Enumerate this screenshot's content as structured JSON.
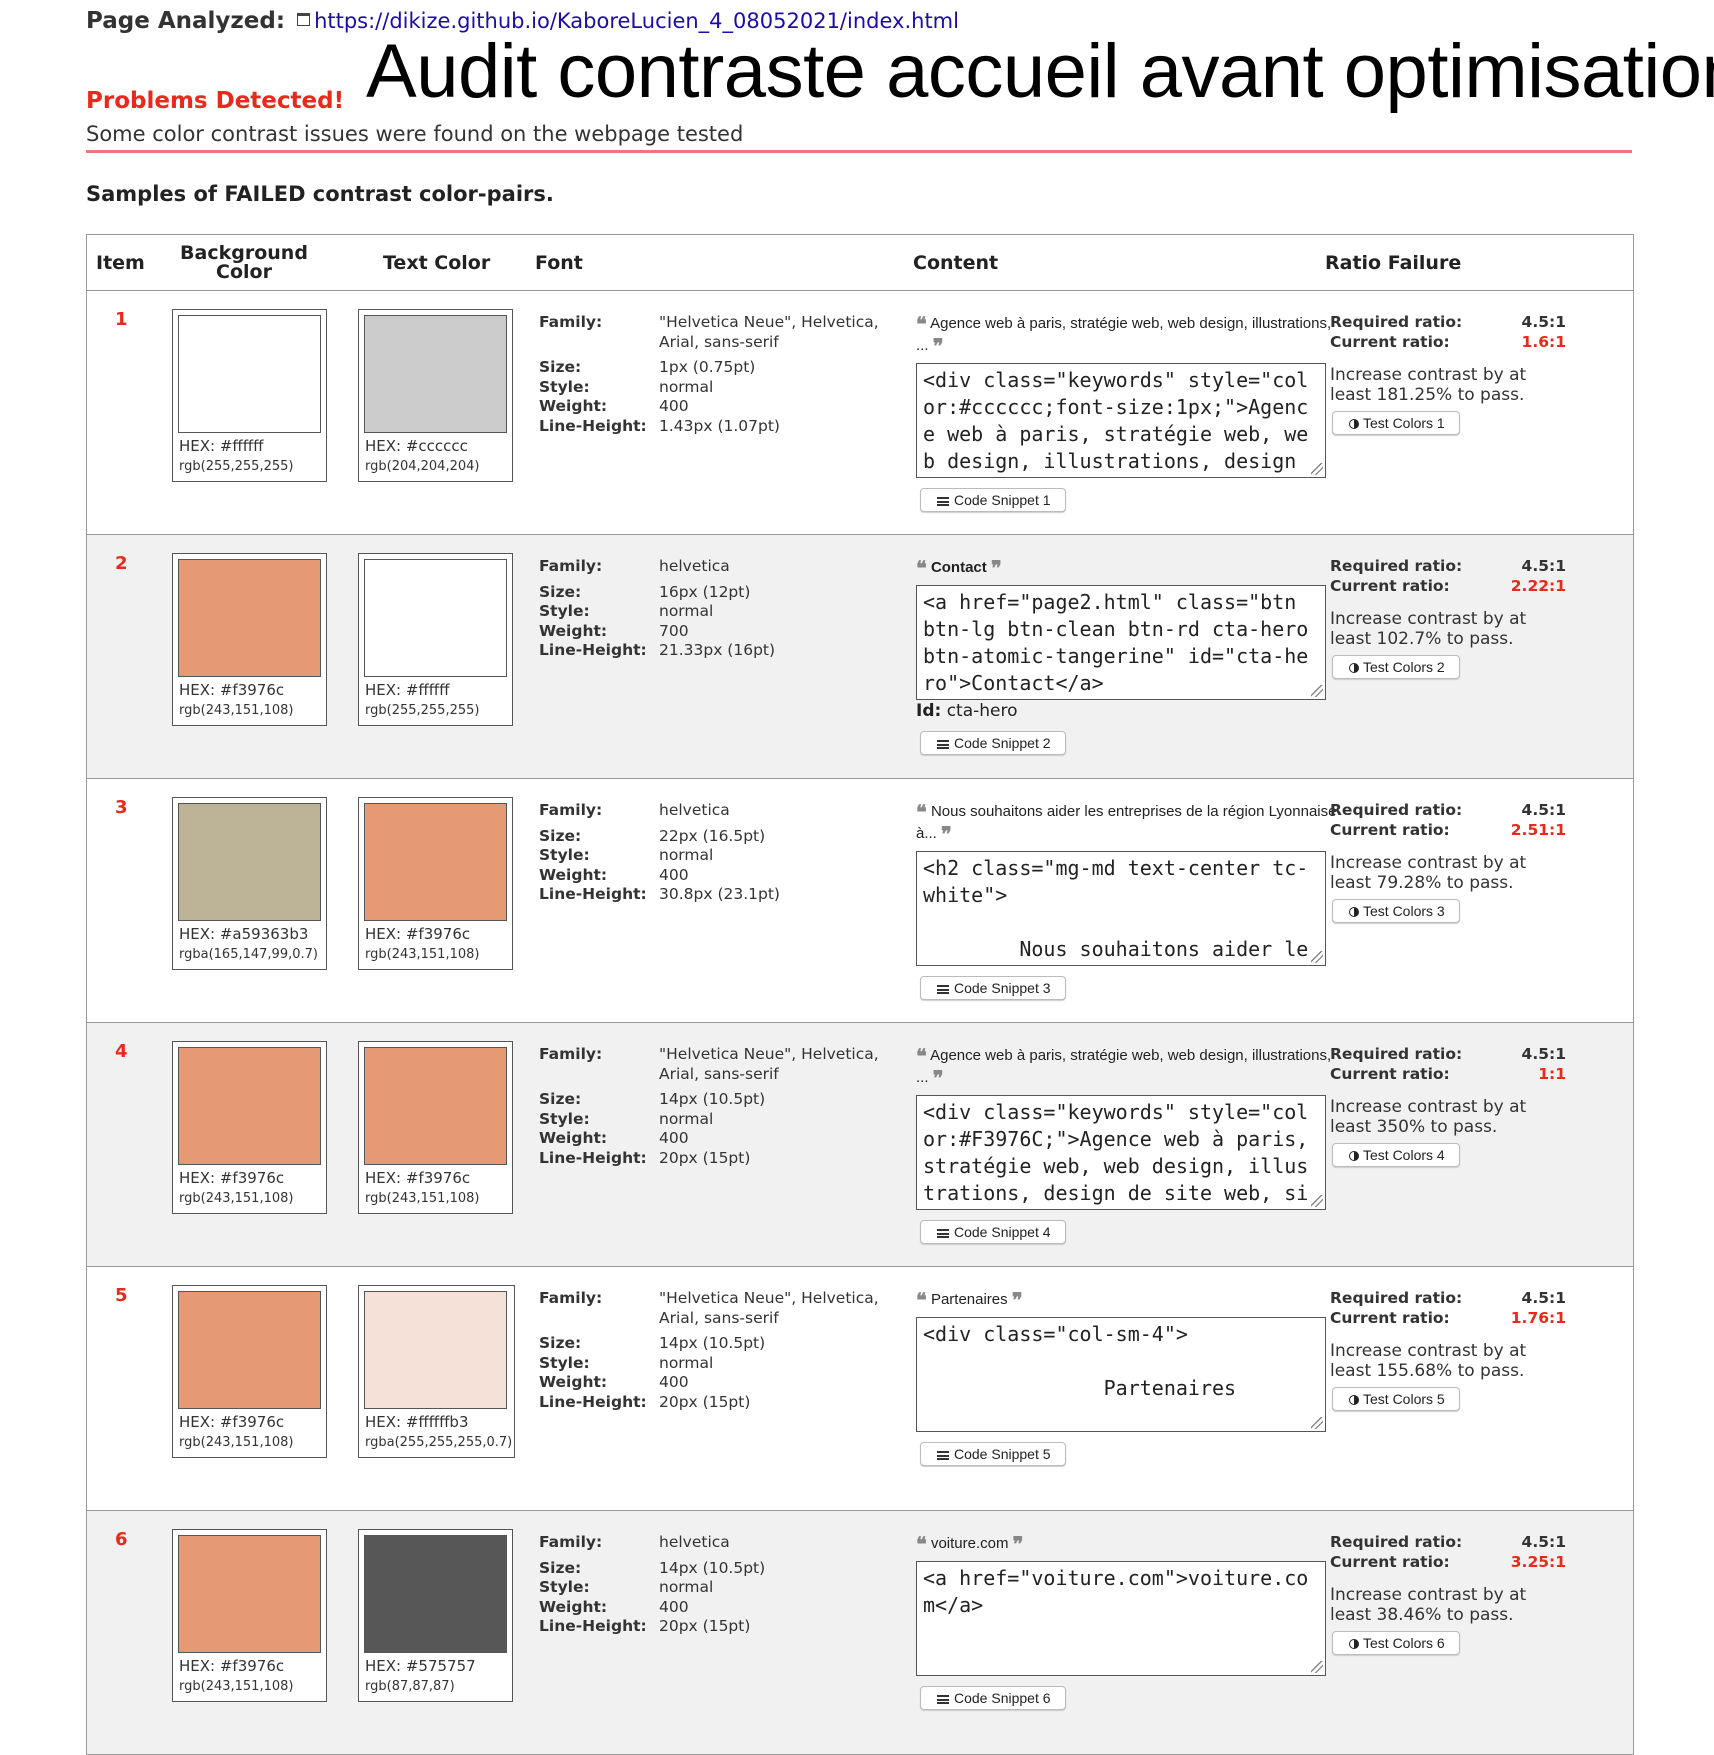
{
  "header": {
    "page_analyzed_label": "Page Analyzed:",
    "url": "https://dikize.github.io/KaboreLucien_4_08052021/index.html",
    "overlay_title": "Audit contraste accueil avant optimisation",
    "problems_title": "Problems Detected!",
    "problems_desc": "Some color contrast issues were found on the webpage tested",
    "samples_title": "Samples of FAILED contrast color-pairs."
  },
  "table": {
    "columns": {
      "item": "Item",
      "background": "Background Color",
      "text_color": "Text Color",
      "font": "Font",
      "content": "Content",
      "ratio_failure": "Ratio Failure"
    },
    "labels": {
      "family": "Family:",
      "size": "Size:",
      "style": "Style:",
      "weight": "Weight:",
      "line_height": "Line-Height:",
      "required": "Required ratio:",
      "current": "Current ratio:",
      "id": "Id:"
    },
    "rows": [
      {
        "item": "1",
        "bg": {
          "color": "#ffffff",
          "hex": "HEX: #ffffff",
          "rgb": "rgb(255,255,255)"
        },
        "fg": {
          "color": "#cccccc",
          "hex": "HEX: #cccccc",
          "rgb": "rgb(204,204,204)"
        },
        "font": {
          "family": "\"Helvetica Neue\", Helvetica, Arial, sans-serif",
          "size": "1px (0.75pt)",
          "style": "normal",
          "weight": "400",
          "line_height": "1.43px (1.07pt)"
        },
        "quote": "Agence web à paris, stratégie web, web design, illustrations, ...",
        "code": "<div class=\"keywords\" style=\"color:#cccccc;font-size:1px;\">Agence web à paris, stratégie web, web design, illustrations, design",
        "id": "",
        "snippet_btn": "Code Snippet 1",
        "required": "4.5:1",
        "current": "1.6:1",
        "increase": "Increase contrast by at least 181.25% to pass.",
        "test_btn": "Test Colors 1"
      },
      {
        "item": "2",
        "bg": {
          "color": "#e59975",
          "hex": "HEX: #f3976c",
          "rgb": "rgb(243,151,108)"
        },
        "fg": {
          "color": "#ffffff",
          "hex": "HEX: #ffffff",
          "rgb": "rgb(255,255,255)"
        },
        "font": {
          "family": "helvetica",
          "size": "16px (12pt)",
          "style": "normal",
          "weight": "700",
          "line_height": "21.33px (16pt)"
        },
        "quote": "Contact",
        "code": "<a href=\"page2.html\" class=\"btn btn-lg btn-clean btn-rd cta-hero btn-atomic-tangerine\" id=\"cta-hero\">Contact</a>",
        "id": "cta-hero",
        "snippet_btn": "Code Snippet 2",
        "required": "4.5:1",
        "current": "2.22:1",
        "increase": "Increase contrast by at least 102.7% to pass.",
        "test_btn": "Test Colors 2"
      },
      {
        "item": "3",
        "bg": {
          "color": "#bdb396",
          "hex": "HEX: #a59363b3",
          "rgb": "rgba(165,147,99,0.7)"
        },
        "fg": {
          "color": "#e59975",
          "hex": "HEX: #f3976c",
          "rgb": "rgb(243,151,108)"
        },
        "font": {
          "family": "helvetica",
          "size": "22px (16.5pt)",
          "style": "normal",
          "weight": "400",
          "line_height": "30.8px (23.1pt)"
        },
        "quote": "Nous souhaitons aider les entreprises de la région Lyonnaise à...",
        "code": "<h2 class=\"mg-md text-center tc-white\">\n\n        Nous souhaitons aider le",
        "id": "",
        "snippet_btn": "Code Snippet 3",
        "required": "4.5:1",
        "current": "2.51:1",
        "increase": "Increase contrast by at least 79.28% to pass.",
        "test_btn": "Test Colors 3"
      },
      {
        "item": "4",
        "bg": {
          "color": "#e59975",
          "hex": "HEX: #f3976c",
          "rgb": "rgb(243,151,108)"
        },
        "fg": {
          "color": "#e59975",
          "hex": "HEX: #f3976c",
          "rgb": "rgb(243,151,108)"
        },
        "font": {
          "family": "\"Helvetica Neue\", Helvetica, Arial, sans-serif",
          "size": "14px (10.5pt)",
          "style": "normal",
          "weight": "400",
          "line_height": "20px (15pt)"
        },
        "quote": "Agence web à paris, stratégie web, web design, illustrations, ...",
        "code": "<div class=\"keywords\" style=\"color:#F3976C;\">Agence web à paris, stratégie web, web design, illustrations, design de site web, si",
        "id": "",
        "snippet_btn": "Code Snippet 4",
        "required": "4.5:1",
        "current": "1:1",
        "increase": "Increase contrast by at least 350% to pass.",
        "test_btn": "Test Colors 4"
      },
      {
        "item": "5",
        "bg": {
          "color": "#e59975",
          "hex": "HEX: #f3976c",
          "rgb": "rgb(243,151,108)"
        },
        "fg": {
          "color": "#f5e1d7",
          "hex": "HEX: #ffffffb3",
          "rgb": "rgba(255,255,255,0.7)"
        },
        "font": {
          "family": "\"Helvetica Neue\", Helvetica, Arial, sans-serif",
          "size": "14px (10.5pt)",
          "style": "normal",
          "weight": "400",
          "line_height": "20px (15pt)"
        },
        "quote": "Partenaires",
        "code": "<div class=\"col-sm-4\">\n\n               Partenaires",
        "id": "",
        "snippet_btn": "Code Snippet 5",
        "required": "4.5:1",
        "current": "1.76:1",
        "increase": "Increase contrast by at least 155.68% to pass.",
        "test_btn": "Test Colors 5"
      },
      {
        "item": "6",
        "bg": {
          "color": "#e59975",
          "hex": "HEX: #f3976c",
          "rgb": "rgb(243,151,108)"
        },
        "fg": {
          "color": "#575757",
          "hex": "HEX: #575757",
          "rgb": "rgb(87,87,87)"
        },
        "font": {
          "family": "helvetica",
          "size": "14px (10.5pt)",
          "style": "normal",
          "weight": "400",
          "line_height": "20px (15pt)"
        },
        "quote": "voiture.com",
        "code": "<a href=\"voiture.com\">voiture.com</a>",
        "id": "",
        "snippet_btn": "Code Snippet 6",
        "required": "4.5:1",
        "current": "3.25:1",
        "increase": "Increase contrast by at least 38.46% to pass.",
        "test_btn": "Test Colors 6"
      }
    ]
  }
}
